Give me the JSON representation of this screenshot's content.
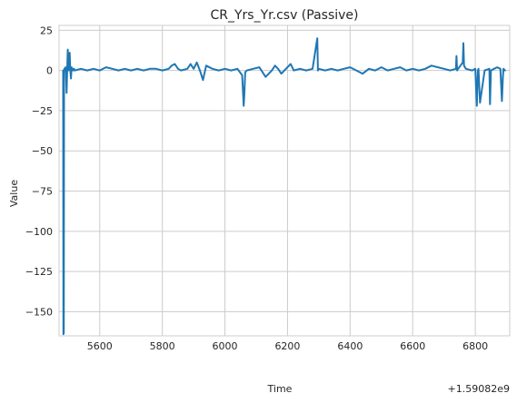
{
  "chart_data": {
    "type": "line",
    "title": "CR_Yrs_Yr.csv (Passive)",
    "xlabel": "Time",
    "ylabel": "Value",
    "offset_text": "+1.59082e9",
    "xlim": [
      5470,
      6910
    ],
    "ylim": [
      -165,
      28
    ],
    "xticks": [
      5600,
      5800,
      6000,
      6200,
      6400,
      6600,
      6800
    ],
    "yticks": [
      25,
      0,
      -25,
      -50,
      -75,
      -100,
      -125,
      -150
    ],
    "grid": true,
    "series": [
      {
        "color": "#1f77b4",
        "x": [
          5483,
          5484,
          5485,
          5486,
          5487,
          5488,
          5490,
          5492,
          5494,
          5496,
          5498,
          5500,
          5502,
          5504,
          5506,
          5508,
          5510,
          5512,
          5514,
          5516,
          5518,
          5520,
          5540,
          5560,
          5580,
          5600,
          5620,
          5640,
          5660,
          5680,
          5700,
          5720,
          5740,
          5760,
          5780,
          5800,
          5820,
          5830,
          5840,
          5850,
          5860,
          5880,
          5890,
          5900,
          5910,
          5920,
          5930,
          5940,
          5960,
          5980,
          6000,
          6020,
          6040,
          6055,
          6060,
          6062,
          6065,
          6070,
          6090,
          6110,
          6130,
          6140,
          6150,
          6160,
          6170,
          6180,
          6200,
          6210,
          6220,
          6240,
          6260,
          6280,
          6295,
          6297,
          6300,
          6320,
          6340,
          6360,
          6380,
          6400,
          6420,
          6440,
          6460,
          6480,
          6500,
          6520,
          6540,
          6560,
          6580,
          6600,
          6620,
          6640,
          6660,
          6680,
          6700,
          6720,
          6738,
          6740,
          6742,
          6745,
          6760,
          6762,
          6764,
          6770,
          6790,
          6800,
          6805,
          6808,
          6810,
          6815,
          6830,
          6845,
          6847,
          6850,
          6860,
          6870,
          6880,
          6885,
          6888,
          6890,
          6895
        ],
        "y": [
          0,
          -164,
          -163,
          0,
          1,
          0,
          2,
          0,
          -14,
          2,
          13,
          0,
          4,
          11,
          0,
          -5,
          2,
          0,
          1,
          0,
          1,
          0,
          1,
          0,
          1,
          0,
          2,
          1,
          0,
          1,
          0,
          1,
          0,
          1,
          1,
          0,
          1,
          3,
          4,
          1,
          0,
          1,
          4,
          1,
          5,
          0,
          -6,
          3,
          1,
          0,
          1,
          0,
          1,
          -3,
          -22,
          -15,
          -1,
          0,
          1,
          2,
          -4,
          -2,
          0,
          3,
          1,
          -2,
          2,
          4,
          0,
          1,
          0,
          1,
          20,
          0,
          1,
          0,
          1,
          0,
          1,
          2,
          0,
          -2,
          1,
          0,
          2,
          0,
          1,
          2,
          0,
          1,
          0,
          1,
          3,
          2,
          1,
          0,
          1,
          9,
          0,
          1,
          5,
          17,
          3,
          1,
          0,
          1,
          -22,
          0,
          1,
          -20,
          0,
          1,
          -21,
          0,
          1,
          2,
          1,
          -19,
          -5,
          1,
          0
        ]
      }
    ]
  }
}
